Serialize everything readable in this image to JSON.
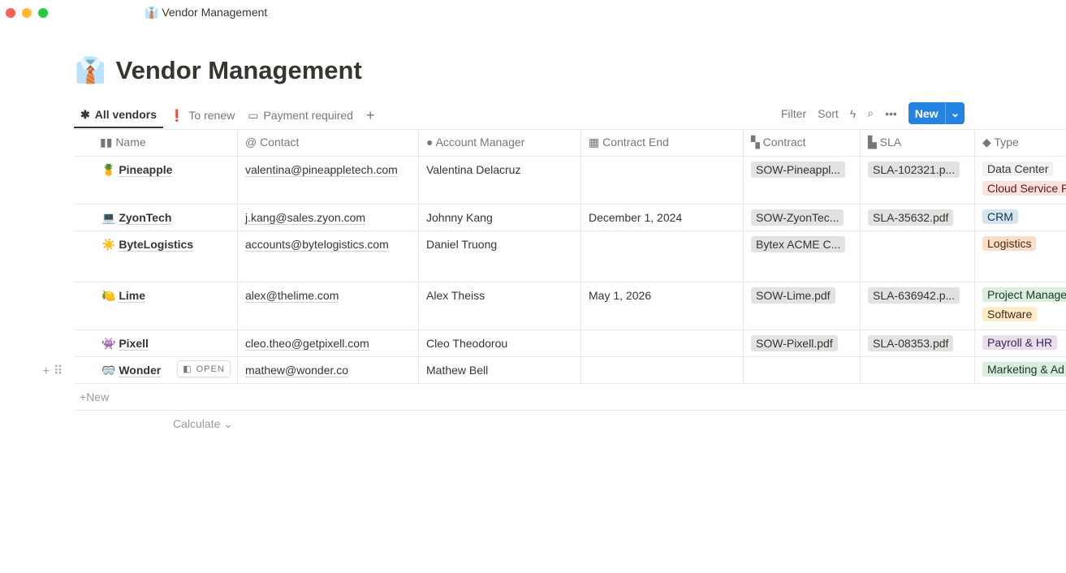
{
  "window": {
    "title": "Vendor Management",
    "icon": "necktie-shirt-emoji"
  },
  "page": {
    "title": "Vendor Management"
  },
  "tabs": [
    {
      "label": "All vendors",
      "icon": "asterisk-icon",
      "active": true
    },
    {
      "label": "To renew",
      "icon": "alert-bubble-icon"
    },
    {
      "label": "Payment required",
      "icon": "payment-icon"
    }
  ],
  "toolbar": {
    "filter": "Filter",
    "sort": "Sort",
    "new": "New"
  },
  "columns": [
    "Name",
    "Contact",
    "Account Manager",
    "Contract End",
    "Contract",
    "SLA",
    "Type"
  ],
  "rows": [
    {
      "emoji": "🍍",
      "name": "Pineapple",
      "contact": "valentina@pineappletech.com",
      "manager": "Valentina Delacruz",
      "end": "",
      "contract": "SOW-Pineappl...",
      "sla": "SLA-102321.p...",
      "types": [
        {
          "label": "Data Center",
          "bg": "#f1f1ef",
          "fg": "#37352f"
        },
        {
          "label": "Cloud Service P",
          "bg": "#ffe2dd",
          "fg": "#5d1715"
        }
      ]
    },
    {
      "emoji": "💻",
      "name": "ZyonTech",
      "contact": "j.kang@sales.zyon.com",
      "manager": "Johnny Kang",
      "end": "December 1, 2024",
      "contract": "SOW-ZyonTec...",
      "sla": "SLA-35632.pdf",
      "types": [
        {
          "label": "CRM",
          "bg": "#d3e5ef",
          "fg": "#183347"
        }
      ]
    },
    {
      "emoji": "☀️",
      "name": "ByteLogistics",
      "contact": "accounts@bytelogistics.com",
      "manager": "Daniel Truong",
      "end": "",
      "contract": "Bytex ACME C...",
      "sla": "",
      "types": [
        {
          "label": "Logistics",
          "bg": "#fadec9",
          "fg": "#49290e"
        }
      ]
    },
    {
      "emoji": "🍋",
      "name": "Lime",
      "contact": "alex@thelime.com",
      "manager": "Alex Theiss",
      "end": "May 1, 2026",
      "contract": "SOW-Lime.pdf",
      "sla": "SLA-636942.p...",
      "types": [
        {
          "label": "Project Manage",
          "bg": "#dbeddb",
          "fg": "#1c3829"
        },
        {
          "label": "Software",
          "bg": "#fdecc8",
          "fg": "#402c1b"
        }
      ]
    },
    {
      "emoji": "👾",
      "name": "Pixell",
      "contact": "cleo.theo@getpixell.com",
      "manager": "Cleo Theodorou",
      "end": "",
      "contract": "SOW-Pixell.pdf",
      "sla": "SLA-08353.pdf",
      "types": [
        {
          "label": "Payroll & HR",
          "bg": "#e8deee",
          "fg": "#412454"
        }
      ]
    },
    {
      "emoji": "🥽",
      "name": "Wonder",
      "contact": "mathew@wonder.co",
      "manager": "Mathew Bell",
      "end": "",
      "contract": "",
      "sla": "",
      "types": [
        {
          "label": "Marketing & Ad",
          "bg": "#dbeddb",
          "fg": "#1c3829"
        }
      ],
      "open_label": "OPEN"
    }
  ],
  "footer": {
    "new": "New",
    "calculate": "Calculate"
  }
}
